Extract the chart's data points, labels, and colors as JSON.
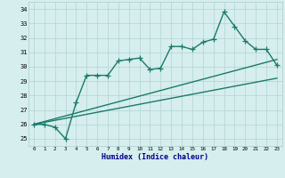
{
  "title": "",
  "xlabel": "Humidex (Indice chaleur)",
  "ylabel": "",
  "xlim": [
    -0.5,
    23.5
  ],
  "ylim": [
    24.5,
    34.5
  ],
  "yticks": [
    25,
    26,
    27,
    28,
    29,
    30,
    31,
    32,
    33,
    34
  ],
  "xticks": [
    0,
    1,
    2,
    3,
    4,
    5,
    6,
    7,
    8,
    9,
    10,
    11,
    12,
    13,
    14,
    15,
    16,
    17,
    18,
    19,
    20,
    21,
    22,
    23
  ],
  "bg_color": "#d6eeee",
  "grid_color": "#b8d8d8",
  "line_color": "#1a7a6a",
  "line1_x": [
    0,
    1,
    2,
    3,
    4,
    5,
    6,
    7,
    8,
    9,
    10,
    11,
    12,
    13,
    14,
    15,
    16,
    17,
    18,
    19,
    20,
    21,
    22,
    23
  ],
  "line1_y": [
    26.0,
    26.0,
    25.8,
    25.0,
    27.5,
    29.4,
    29.4,
    29.4,
    30.4,
    30.5,
    30.6,
    29.8,
    29.9,
    31.4,
    31.4,
    31.2,
    31.7,
    31.9,
    33.8,
    32.8,
    31.8,
    31.2,
    31.2,
    30.1
  ],
  "line2_x": [
    0,
    23
  ],
  "line2_y": [
    26.0,
    30.5
  ],
  "line3_x": [
    0,
    23
  ],
  "line3_y": [
    26.0,
    29.2
  ],
  "marker": "+",
  "markersize": 4,
  "linewidth": 1.0
}
